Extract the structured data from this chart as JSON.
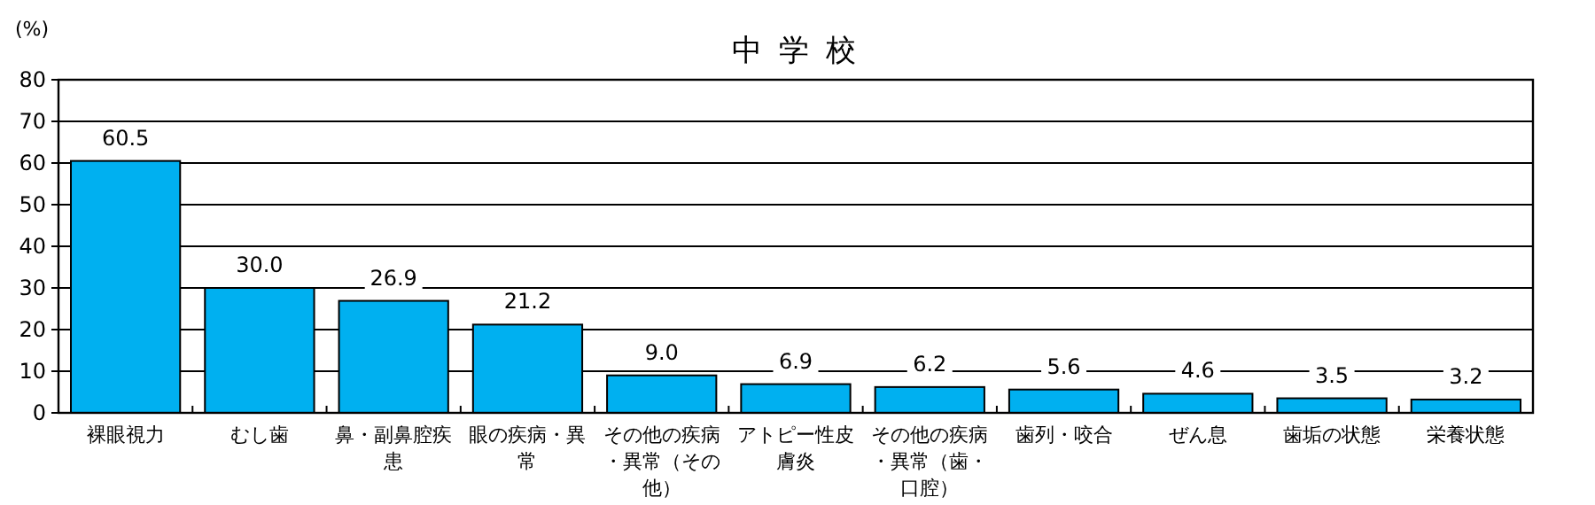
{
  "chart_data": {
    "type": "bar",
    "title": "中 学 校",
    "ylabel": "(%)",
    "categories": [
      "裸眼視力",
      "むし歯",
      "鼻・副鼻腔疾患",
      "眼の疾病・異常",
      "その他の疾病・異常（その他）",
      "アトピー性皮膚炎",
      "その他の疾病・異常（歯・口腔）",
      "歯列・咬合",
      "ぜん息",
      "歯垢の状態",
      "栄養状態"
    ],
    "values": [
      60.5,
      30.0,
      26.9,
      21.2,
      9.0,
      6.9,
      6.2,
      5.6,
      4.6,
      3.5,
      3.2
    ],
    "value_labels": [
      "60.5",
      "30.0",
      "26.9",
      "21.2",
      "9.0",
      "6.9",
      "6.2",
      "5.6",
      "4.6",
      "3.5",
      "3.2"
    ],
    "color": "#00b0f0",
    "ylim": [
      0,
      80
    ],
    "yticks": [
      0,
      10,
      20,
      30,
      40,
      50,
      60,
      70,
      80
    ],
    "grid": "y"
  }
}
